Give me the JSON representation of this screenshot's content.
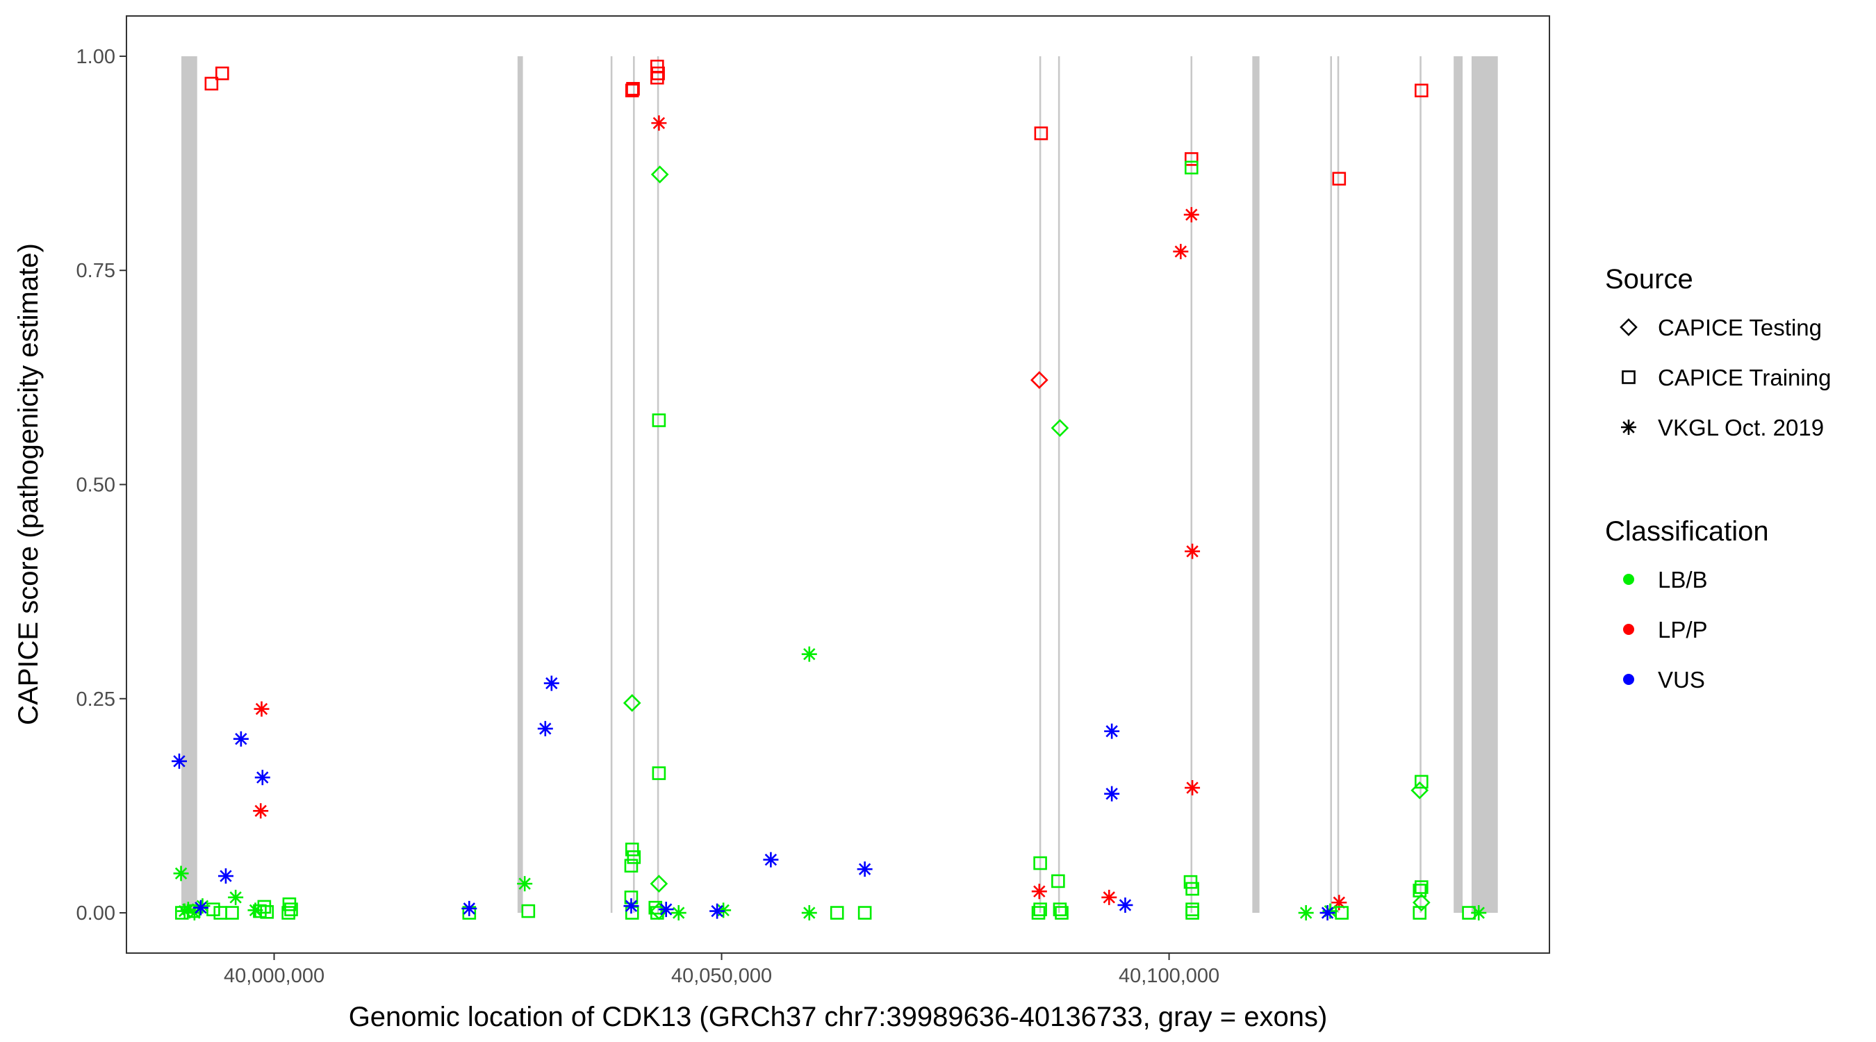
{
  "chart_data": {
    "type": "scatter",
    "title": "",
    "xlabel": "Genomic location of CDK13 (GRCh37 chr7:39989636-40136733, gray = exons)",
    "ylabel": "CAPICE score (pathogenicity estimate)",
    "xlim": [
      39983500,
      40142500
    ],
    "ylim": [
      -0.047,
      1.047
    ],
    "x_ticks": [
      {
        "value": 40000000,
        "label": "40,000,000"
      },
      {
        "value": 40050000,
        "label": "40,050,000"
      },
      {
        "value": 40100000,
        "label": "40,100,000"
      }
    ],
    "y_ticks": [
      {
        "value": 0,
        "label": "0.00"
      },
      {
        "value": 0.25,
        "label": "0.25"
      },
      {
        "value": 0.5,
        "label": "0.50"
      },
      {
        "value": 0.75,
        "label": "0.75"
      },
      {
        "value": 1.0,
        "label": "1.00"
      }
    ],
    "grid": false,
    "legend_position": "right",
    "exons": [
      [
        39989636,
        39991400
      ],
      [
        40027200,
        40027800
      ],
      [
        40037600,
        40037800
      ],
      [
        40040100,
        40040300
      ],
      [
        40042800,
        40043000
      ],
      [
        40085500,
        40085700
      ],
      [
        40087600,
        40087800
      ],
      [
        40102400,
        40102600
      ],
      [
        40109300,
        40110100
      ],
      [
        40118000,
        40118200
      ],
      [
        40118800,
        40119000
      ],
      [
        40128000,
        40128200
      ],
      [
        40131800,
        40132800
      ],
      [
        40133800,
        40136733
      ]
    ],
    "colors": {
      "LB/B": "#00ee00",
      "LP/P": "#ff0000",
      "VUS": "#0000ff",
      "exon": "#c8c8c8"
    },
    "legends": {
      "source": {
        "title": "Source",
        "items": [
          {
            "label": "CAPICE Testing",
            "shape": "diamond"
          },
          {
            "label": "CAPICE Training",
            "shape": "square"
          },
          {
            "label": "VKGL Oct. 2019",
            "shape": "asterisk"
          }
        ]
      },
      "classification": {
        "title": "Classification",
        "items": [
          {
            "label": "LB/B",
            "color": "#00ee00"
          },
          {
            "label": "LP/P",
            "color": "#ff0000"
          },
          {
            "label": "VUS",
            "color": "#0000ff"
          }
        ]
      }
    },
    "series": [
      {
        "source": "CAPICE Training",
        "classification": "LP/P",
        "shape": "square",
        "points": [
          [
            39993000,
            0.968
          ],
          [
            39994200,
            0.98
          ],
          [
            40040000,
            0.96
          ],
          [
            40040100,
            0.962
          ],
          [
            40042800,
            0.988
          ],
          [
            40042800,
            0.975
          ],
          [
            40042900,
            0.98
          ],
          [
            40085700,
            0.91
          ],
          [
            40102500,
            0.88
          ],
          [
            40119000,
            0.857
          ],
          [
            40128200,
            0.96
          ]
        ]
      },
      {
        "source": "VKGL Oct. 2019",
        "classification": "LP/P",
        "shape": "asterisk",
        "points": [
          [
            40043000,
            0.922
          ],
          [
            39998600,
            0.238
          ],
          [
            39998500,
            0.119
          ],
          [
            40101300,
            0.772
          ],
          [
            40102500,
            0.815
          ],
          [
            40102600,
            0.422
          ],
          [
            40102600,
            0.146
          ],
          [
            40085500,
            0.025
          ],
          [
            40093300,
            0.018
          ],
          [
            40119000,
            0.012
          ]
        ]
      },
      {
        "source": "CAPICE Testing",
        "classification": "LP/P",
        "shape": "diamond",
        "points": [
          [
            40085500,
            0.622
          ]
        ]
      },
      {
        "source": "CAPICE Testing",
        "classification": "LB/B",
        "shape": "diamond",
        "points": [
          [
            40043100,
            0.862
          ],
          [
            40087800,
            0.566
          ],
          [
            40040000,
            0.245
          ],
          [
            40043000,
            0.034
          ],
          [
            40128000,
            0.143
          ],
          [
            40128200,
            0.012
          ],
          [
            40043000,
            0.002
          ]
        ]
      },
      {
        "source": "CAPICE Training",
        "classification": "LB/B",
        "shape": "square",
        "points": [
          [
            40102500,
            0.87
          ],
          [
            40043000,
            0.575
          ],
          [
            40043000,
            0.163
          ],
          [
            40040000,
            0.074
          ],
          [
            40040200,
            0.065
          ],
          [
            40039900,
            0.055
          ],
          [
            40039900,
            0.018
          ],
          [
            40042600,
            0.006
          ],
          [
            40040000,
            0.0
          ],
          [
            40042800,
            0.0
          ],
          [
            40085600,
            0.058
          ],
          [
            40087600,
            0.037
          ],
          [
            40085400,
            0.0
          ],
          [
            40085600,
            0.004
          ],
          [
            40087800,
            0.004
          ],
          [
            40088000,
            0.0
          ],
          [
            40102400,
            0.036
          ],
          [
            40102600,
            0.028
          ],
          [
            40102600,
            0.004
          ],
          [
            40102600,
            0.0
          ],
          [
            40128200,
            0.153
          ],
          [
            40128200,
            0.03
          ],
          [
            40128000,
            0.026
          ],
          [
            40128000,
            0.0
          ],
          [
            39989700,
            0.0
          ],
          [
            39991000,
            0.002
          ],
          [
            39993200,
            0.004
          ],
          [
            39994000,
            0.0
          ],
          [
            39995300,
            0.0
          ],
          [
            39998400,
            0.002
          ],
          [
            39998900,
            0.007
          ],
          [
            39999200,
            0.001
          ],
          [
            40001600,
            0.0
          ],
          [
            40001700,
            0.01
          ],
          [
            40001900,
            0.004
          ],
          [
            40021800,
            0.0
          ],
          [
            40028400,
            0.002
          ],
          [
            40062900,
            0.0
          ],
          [
            40066000,
            0.0
          ],
          [
            40119300,
            0.0
          ],
          [
            40133500,
            0.0
          ]
        ]
      },
      {
        "source": "VKGL Oct. 2019",
        "classification": "LB/B",
        "shape": "asterisk",
        "points": [
          [
            40059800,
            0.302
          ],
          [
            39989600,
            0.046
          ],
          [
            39995700,
            0.018
          ],
          [
            39992000,
            0.008
          ],
          [
            39990400,
            0.004
          ],
          [
            39990000,
            0.002
          ],
          [
            39991100,
            0.0
          ],
          [
            39997900,
            0.003
          ],
          [
            40028000,
            0.034
          ],
          [
            40045200,
            0.0
          ],
          [
            40050200,
            0.003
          ],
          [
            40059800,
            0.0
          ],
          [
            40115300,
            0.0
          ],
          [
            40118000,
            0.002
          ],
          [
            40134600,
            0.0
          ]
        ]
      },
      {
        "source": "VKGL Oct. 2019",
        "classification": "VUS",
        "shape": "asterisk",
        "points": [
          [
            39989400,
            0.177
          ],
          [
            39996300,
            0.203
          ],
          [
            39998700,
            0.158
          ],
          [
            39994600,
            0.043
          ],
          [
            39991800,
            0.006
          ],
          [
            40021800,
            0.005
          ],
          [
            40031000,
            0.268
          ],
          [
            40030300,
            0.215
          ],
          [
            40039900,
            0.008
          ],
          [
            40043800,
            0.004
          ],
          [
            40049500,
            0.002
          ],
          [
            40055500,
            0.062
          ],
          [
            40066000,
            0.051
          ],
          [
            40093600,
            0.212
          ],
          [
            40093600,
            0.139
          ],
          [
            40095100,
            0.009
          ],
          [
            40117700,
            0.0
          ]
        ]
      }
    ]
  }
}
